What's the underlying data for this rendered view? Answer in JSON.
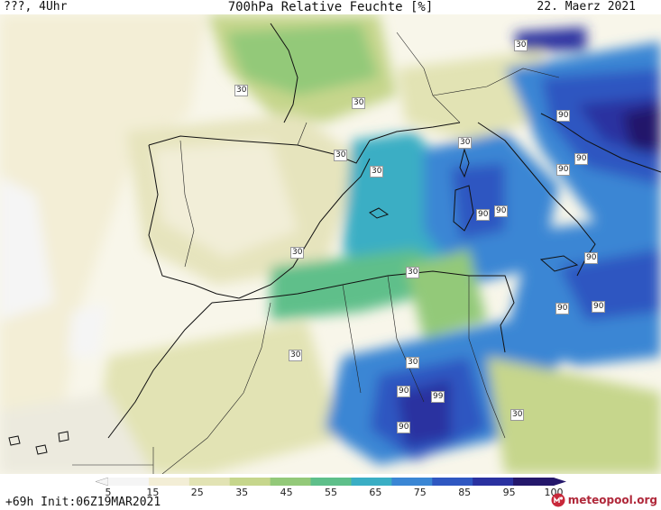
{
  "header": {
    "left": "???, 4Uhr",
    "title": "700hPa Relative Feuchte [%]",
    "right": "22. Maerz 2021"
  },
  "map": {
    "contour_labels": [
      {
        "text": "30"
      },
      {
        "text": "30"
      },
      {
        "text": "30"
      },
      {
        "text": "30"
      },
      {
        "text": "30"
      },
      {
        "text": "30"
      },
      {
        "text": "30"
      },
      {
        "text": "30"
      },
      {
        "text": "30"
      },
      {
        "text": "30"
      },
      {
        "text": "30"
      },
      {
        "text": "90"
      },
      {
        "text": "90"
      },
      {
        "text": "90"
      },
      {
        "text": "90"
      },
      {
        "text": "90"
      },
      {
        "text": "90"
      },
      {
        "text": "90"
      },
      {
        "text": "90"
      },
      {
        "text": "90"
      },
      {
        "text": "90"
      },
      {
        "text": "99"
      }
    ]
  },
  "legend": {
    "ticks": [
      "5",
      "15",
      "25",
      "35",
      "45",
      "55",
      "65",
      "75",
      "85",
      "95",
      "100"
    ],
    "colors": [
      "#f5f5f5",
      "#f3eed6",
      "#e2e3b4",
      "#c6d68c",
      "#93c979",
      "#5ebf8a",
      "#3aaec4",
      "#3a86d4",
      "#2f57c1",
      "#2a31a0",
      "#24176b"
    ]
  },
  "footer": {
    "init": "+69h  Init:06Z19MAR2021",
    "brand": "meteopool.org"
  }
}
